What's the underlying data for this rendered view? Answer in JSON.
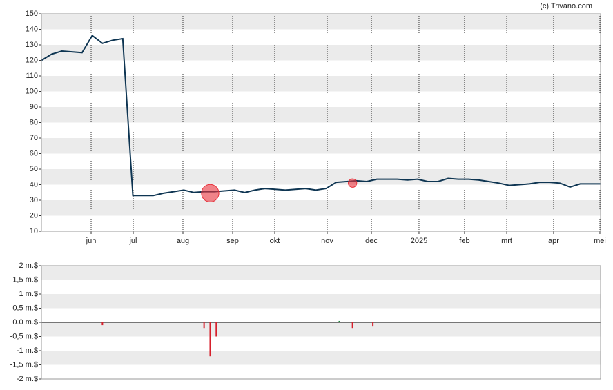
{
  "credit": "(c) Trivano.com",
  "chart_data": [
    {
      "type": "line",
      "x": [
        0,
        1,
        2,
        3,
        4,
        5,
        6,
        7,
        8,
        9,
        10,
        11,
        12,
        13,
        14,
        15,
        16,
        17,
        18,
        19,
        20,
        21,
        22,
        23,
        24,
        25,
        26,
        27,
        28,
        29,
        30,
        31,
        32,
        33,
        34,
        35,
        36,
        37,
        38,
        39,
        40,
        41,
        42,
        43,
        44,
        45,
        46,
        47,
        48,
        49,
        50,
        51,
        52,
        53,
        54,
        55
      ],
      "values": [
        120,
        124,
        126,
        125.5,
        125,
        136,
        131,
        133,
        134,
        33,
        33,
        33,
        34.5,
        35.5,
        36.5,
        35,
        35.5,
        35.5,
        36,
        36.5,
        35,
        36.5,
        37.5,
        37,
        36.5,
        37,
        37.5,
        36.5,
        37.5,
        41.5,
        42,
        42.5,
        42,
        43.5,
        43.5,
        43.5,
        43,
        43.5,
        42,
        42,
        44,
        43.5,
        43.5,
        43,
        42,
        41,
        39.5,
        40,
        40.5,
        41.5,
        41.5,
        41,
        38.5,
        40.5,
        40.5,
        40.5
      ],
      "color": "#0e3552",
      "xlim": [
        0,
        55
      ],
      "xticks": [
        {
          "value": 4.89,
          "label": "jun"
        },
        {
          "value": 9.03,
          "label": "jul"
        },
        {
          "value": 13.92,
          "label": "aug"
        },
        {
          "value": 18.81,
          "label": "sep"
        },
        {
          "value": 22.95,
          "label": "okt"
        },
        {
          "value": 28.11,
          "label": "nov"
        },
        {
          "value": 32.46,
          "label": "dec"
        },
        {
          "value": 37.14,
          "label": "2025"
        },
        {
          "value": 41.62,
          "label": "feb"
        },
        {
          "value": 45.77,
          "label": "mrt"
        },
        {
          "value": 50.38,
          "label": "apr"
        },
        {
          "value": 54.93,
          "label": "mei"
        }
      ],
      "ylim": [
        10,
        150
      ],
      "yticks": [
        10,
        20,
        30,
        40,
        50,
        60,
        70,
        80,
        90,
        100,
        110,
        120,
        130,
        140,
        150
      ],
      "grid": "bands",
      "markers": {
        "x": [
          16.6,
          30.6
        ],
        "values": [
          34.5,
          41
        ],
        "sizes": [
          1.9,
          0.2
        ],
        "color": "#e8303a"
      }
    },
    {
      "type": "bar",
      "x": [
        6.0,
        16.0,
        16.6,
        17.2,
        29.3,
        30.6,
        32.6
      ],
      "values": [
        -0.1,
        -0.2,
        -1.2,
        -0.5,
        0.05,
        -0.2,
        -0.15
      ],
      "colors": [
        "#d6202c",
        "#d6202c",
        "#d6202c",
        "#d6202c",
        "#1a8a3a",
        "#d6202c",
        "#d6202c"
      ],
      "xlim": [
        0,
        55
      ],
      "ylim": [
        -2,
        2
      ],
      "yticks": [
        {
          "value": -2,
          "label": "-2 m.$"
        },
        {
          "value": -1.5,
          "label": "-1,5 m.$"
        },
        {
          "value": -1,
          "label": "-1 m.$"
        },
        {
          "value": -0.5,
          "label": "-0,5 m.$"
        },
        {
          "value": 0,
          "label": "0.0 m.$"
        },
        {
          "value": 0.5,
          "label": "0,5 m.$"
        },
        {
          "value": 1,
          "label": "1 m.$"
        },
        {
          "value": 1.5,
          "label": "1,5 m.$"
        },
        {
          "value": 2,
          "label": "2 m.$"
        }
      ],
      "grid": "bands"
    }
  ]
}
